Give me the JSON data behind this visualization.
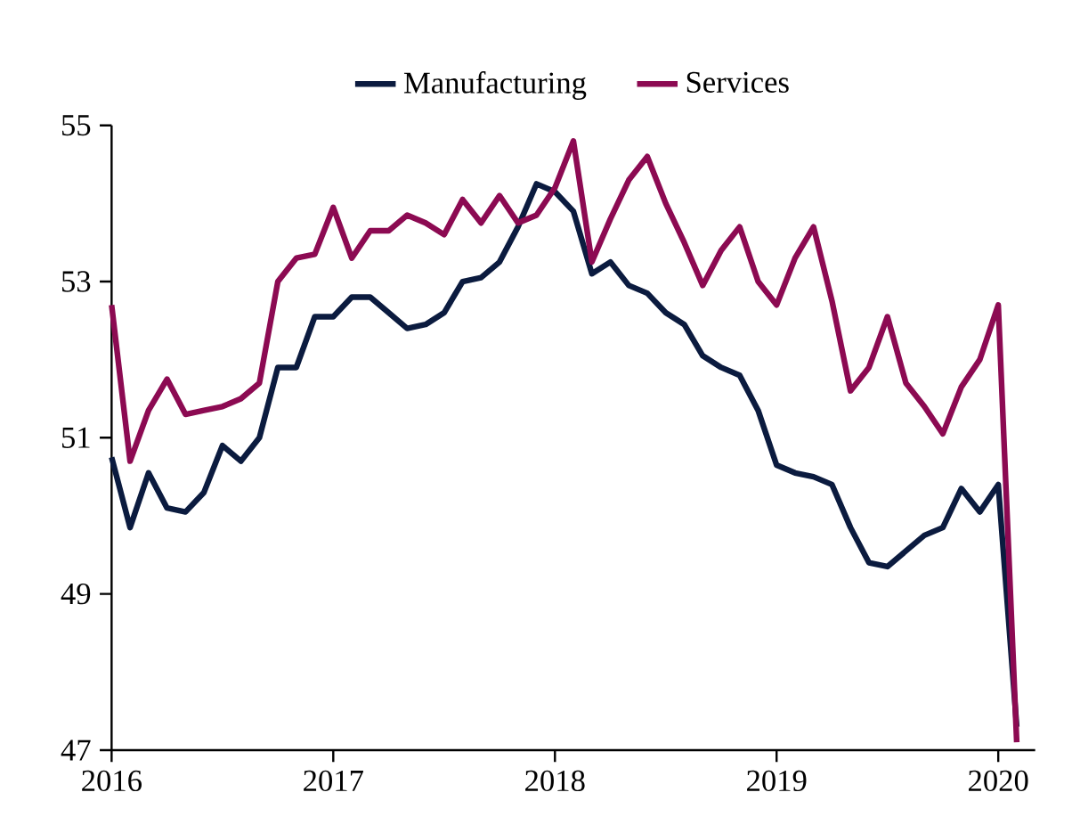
{
  "chart_data": {
    "type": "line",
    "x": [
      "2016-01",
      "2016-02",
      "2016-03",
      "2016-04",
      "2016-05",
      "2016-06",
      "2016-07",
      "2016-08",
      "2016-09",
      "2016-10",
      "2016-11",
      "2016-12",
      "2017-01",
      "2017-02",
      "2017-03",
      "2017-04",
      "2017-05",
      "2017-06",
      "2017-07",
      "2017-08",
      "2017-09",
      "2017-10",
      "2017-11",
      "2017-12",
      "2018-01",
      "2018-02",
      "2018-03",
      "2018-04",
      "2018-05",
      "2018-06",
      "2018-07",
      "2018-08",
      "2018-09",
      "2018-10",
      "2018-11",
      "2018-12",
      "2019-01",
      "2019-02",
      "2019-03",
      "2019-04",
      "2019-05",
      "2019-06",
      "2019-07",
      "2019-08",
      "2019-09",
      "2019-10",
      "2019-11",
      "2019-12",
      "2020-01",
      "2020-02"
    ],
    "series": [
      {
        "name": "Manufacturing",
        "color": "#0b1b3f",
        "values": [
          50.75,
          49.85,
          50.55,
          50.1,
          50.05,
          50.3,
          50.9,
          50.7,
          51.0,
          51.9,
          51.9,
          52.55,
          52.55,
          52.8,
          52.8,
          52.6,
          52.4,
          52.45,
          52.6,
          53.0,
          53.05,
          53.25,
          53.7,
          54.25,
          54.15,
          53.9,
          53.1,
          53.25,
          52.95,
          52.85,
          52.6,
          52.45,
          52.05,
          51.9,
          51.8,
          51.35,
          50.65,
          50.55,
          50.5,
          50.4,
          49.85,
          49.4,
          49.35,
          49.55,
          49.75,
          49.85,
          50.35,
          50.05,
          50.4,
          47.3
        ]
      },
      {
        "name": "Services",
        "color": "#8c0a52",
        "values": [
          52.7,
          50.7,
          51.35,
          51.75,
          51.3,
          51.35,
          51.4,
          51.5,
          51.7,
          53.0,
          53.3,
          53.35,
          53.95,
          53.3,
          53.65,
          53.65,
          53.85,
          53.75,
          53.6,
          54.05,
          53.75,
          54.1,
          53.75,
          53.85,
          54.2,
          54.8,
          53.25,
          53.8,
          54.3,
          54.6,
          54.0,
          53.5,
          52.95,
          53.4,
          53.7,
          53.0,
          52.7,
          53.3,
          53.7,
          52.75,
          51.6,
          51.9,
          52.55,
          51.7,
          51.4,
          51.05,
          51.65,
          52.0,
          52.7,
          47.1
        ]
      }
    ],
    "xlim": [
      "2016-01",
      "2020-03"
    ],
    "xticks": [
      "2016",
      "2017",
      "2018",
      "2019",
      "2020"
    ],
    "ylim": [
      47,
      55
    ],
    "yticks": [
      47,
      49,
      51,
      53,
      55
    ],
    "legend": "top",
    "grid": false,
    "line_style": "solid",
    "marker": "none"
  }
}
